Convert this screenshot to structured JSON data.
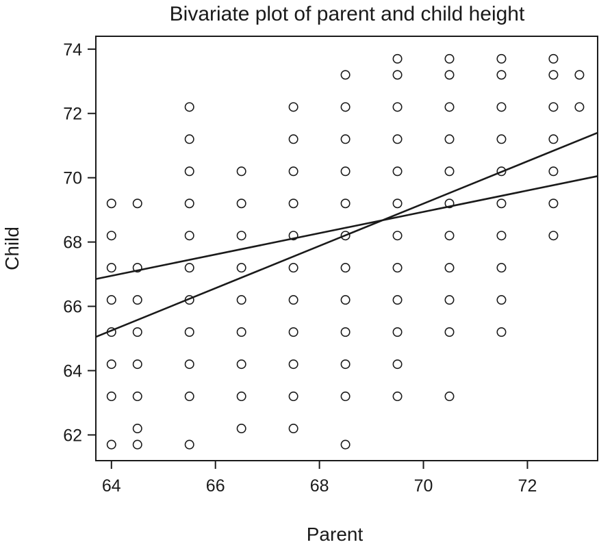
{
  "chart_data": {
    "type": "scatter",
    "title": "Bivariate plot of parent and child height",
    "xlabel": "Parent",
    "ylabel": "Child",
    "xlim": [
      63.7,
      73.35
    ],
    "ylim": [
      61.2,
      74.4
    ],
    "x_ticks": [
      64,
      66,
      68,
      70,
      72
    ],
    "y_ticks": [
      62,
      64,
      66,
      68,
      70,
      72,
      74
    ],
    "grid": false,
    "legend": "none",
    "marker": "open-circle",
    "points": [
      [
        64,
        69.2
      ],
      [
        64,
        68.2
      ],
      [
        64,
        67.2
      ],
      [
        64,
        66.2
      ],
      [
        64,
        65.2
      ],
      [
        64,
        64.2
      ],
      [
        64,
        63.2
      ],
      [
        64,
        61.7
      ],
      [
        64.5,
        69.2
      ],
      [
        64.5,
        67.2
      ],
      [
        64.5,
        66.2
      ],
      [
        64.5,
        65.2
      ],
      [
        64.5,
        64.2
      ],
      [
        64.5,
        63.2
      ],
      [
        64.5,
        62.2
      ],
      [
        64.5,
        61.7
      ],
      [
        65.5,
        72.2
      ],
      [
        65.5,
        71.2
      ],
      [
        65.5,
        70.2
      ],
      [
        65.5,
        69.2
      ],
      [
        65.5,
        68.2
      ],
      [
        65.5,
        67.2
      ],
      [
        65.5,
        66.2
      ],
      [
        65.5,
        65.2
      ],
      [
        65.5,
        64.2
      ],
      [
        65.5,
        63.2
      ],
      [
        65.5,
        61.7
      ],
      [
        66.5,
        70.2
      ],
      [
        66.5,
        69.2
      ],
      [
        66.5,
        68.2
      ],
      [
        66.5,
        67.2
      ],
      [
        66.5,
        66.2
      ],
      [
        66.5,
        65.2
      ],
      [
        66.5,
        64.2
      ],
      [
        66.5,
        63.2
      ],
      [
        66.5,
        62.2
      ],
      [
        67.5,
        72.2
      ],
      [
        67.5,
        71.2
      ],
      [
        67.5,
        70.2
      ],
      [
        67.5,
        69.2
      ],
      [
        67.5,
        68.2
      ],
      [
        67.5,
        67.2
      ],
      [
        67.5,
        66.2
      ],
      [
        67.5,
        65.2
      ],
      [
        67.5,
        64.2
      ],
      [
        67.5,
        63.2
      ],
      [
        67.5,
        62.2
      ],
      [
        68.5,
        73.2
      ],
      [
        68.5,
        72.2
      ],
      [
        68.5,
        71.2
      ],
      [
        68.5,
        70.2
      ],
      [
        68.5,
        69.2
      ],
      [
        68.5,
        68.2
      ],
      [
        68.5,
        67.2
      ],
      [
        68.5,
        66.2
      ],
      [
        68.5,
        65.2
      ],
      [
        68.5,
        64.2
      ],
      [
        68.5,
        63.2
      ],
      [
        68.5,
        61.7
      ],
      [
        69.5,
        73.7
      ],
      [
        69.5,
        73.2
      ],
      [
        69.5,
        72.2
      ],
      [
        69.5,
        71.2
      ],
      [
        69.5,
        70.2
      ],
      [
        69.5,
        69.2
      ],
      [
        69.5,
        68.2
      ],
      [
        69.5,
        67.2
      ],
      [
        69.5,
        66.2
      ],
      [
        69.5,
        65.2
      ],
      [
        69.5,
        64.2
      ],
      [
        69.5,
        63.2
      ],
      [
        70.5,
        73.7
      ],
      [
        70.5,
        73.2
      ],
      [
        70.5,
        72.2
      ],
      [
        70.5,
        71.2
      ],
      [
        70.5,
        70.2
      ],
      [
        70.5,
        69.2
      ],
      [
        70.5,
        68.2
      ],
      [
        70.5,
        67.2
      ],
      [
        70.5,
        66.2
      ],
      [
        70.5,
        65.2
      ],
      [
        70.5,
        63.2
      ],
      [
        71.5,
        73.7
      ],
      [
        71.5,
        73.2
      ],
      [
        71.5,
        72.2
      ],
      [
        71.5,
        71.2
      ],
      [
        71.5,
        70.2
      ],
      [
        71.5,
        69.2
      ],
      [
        71.5,
        68.2
      ],
      [
        71.5,
        67.2
      ],
      [
        71.5,
        66.2
      ],
      [
        71.5,
        65.2
      ],
      [
        72.5,
        73.7
      ],
      [
        72.5,
        73.2
      ],
      [
        72.5,
        72.2
      ],
      [
        72.5,
        71.2
      ],
      [
        72.5,
        70.2
      ],
      [
        72.5,
        69.2
      ],
      [
        72.5,
        68.2
      ],
      [
        73,
        73.2
      ],
      [
        73,
        72.2
      ]
    ],
    "lines": [
      {
        "points": [
          [
            63.7,
            66.85
          ],
          [
            73.35,
            70.05
          ]
        ]
      },
      {
        "points": [
          [
            63.7,
            65.05
          ],
          [
            73.35,
            71.4
          ]
        ]
      }
    ]
  }
}
